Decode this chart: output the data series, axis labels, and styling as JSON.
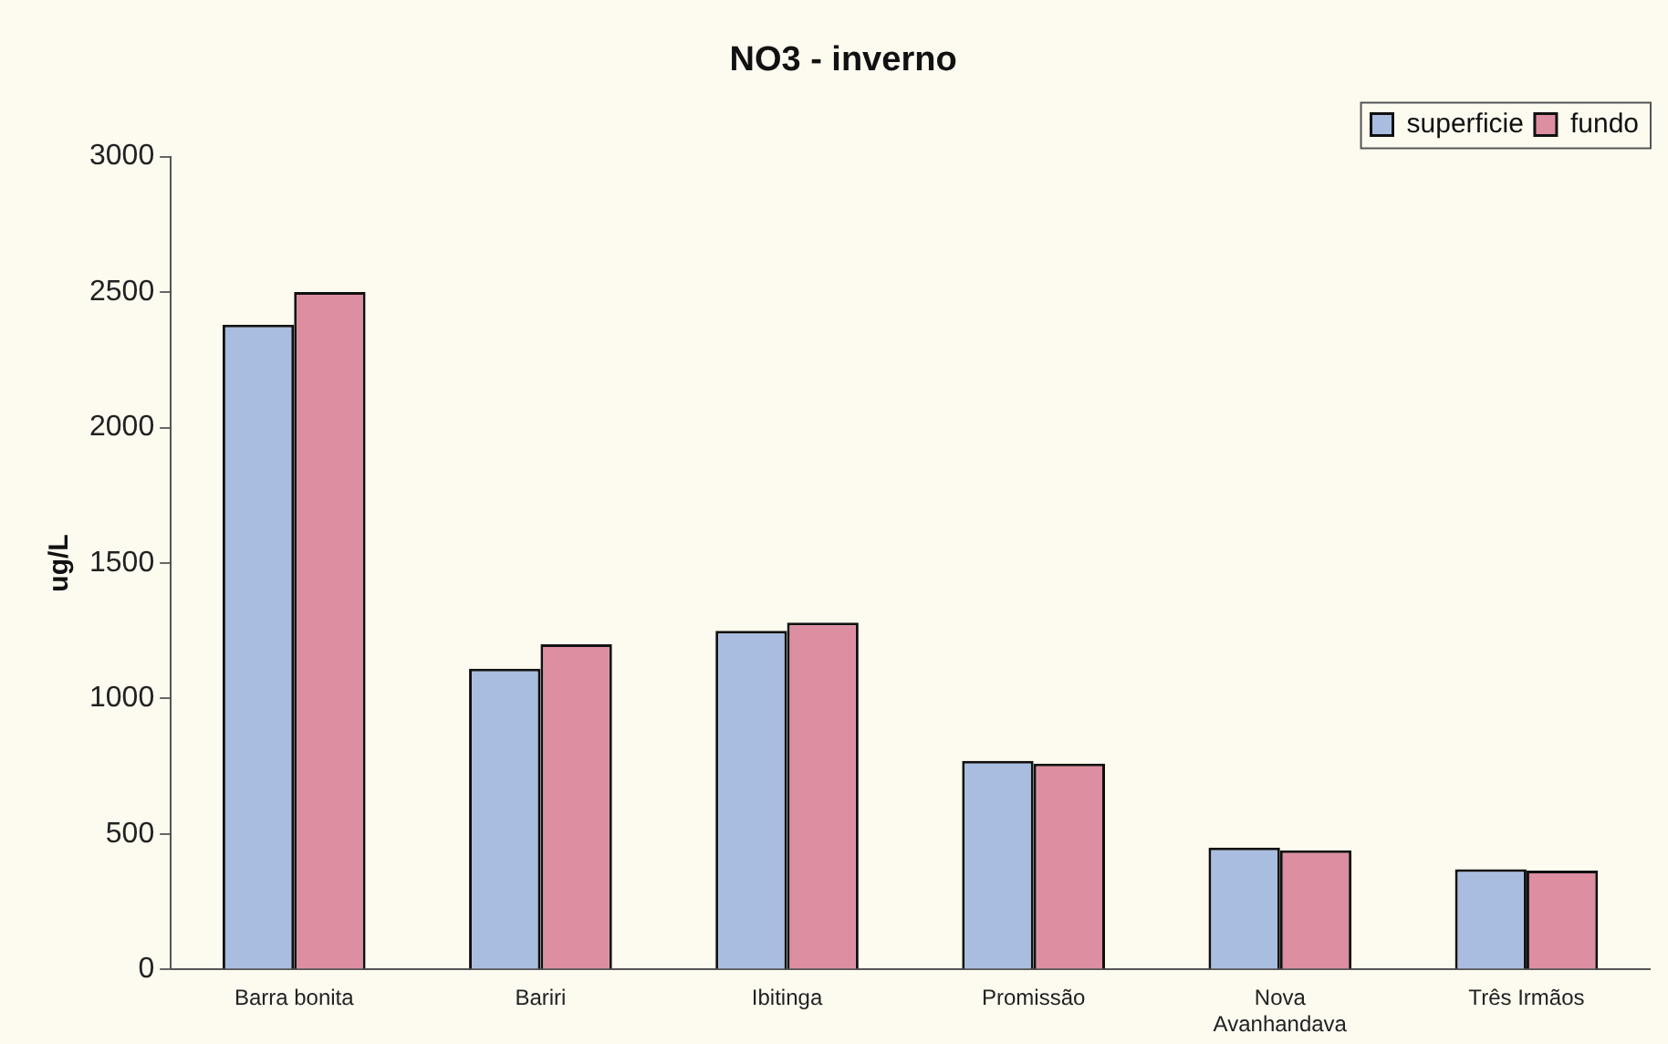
{
  "chart_data": {
    "type": "bar",
    "title": "NO3 - inverno",
    "ylabel": "ug/L",
    "categories": [
      "Barra bonita",
      "Bariri",
      "Ibitinga",
      "Promissão",
      "Nova Avanhandava",
      "Três Irmãos"
    ],
    "series": [
      {
        "name": "superficie",
        "color": "#a9bde0",
        "values": [
          2380,
          1110,
          1250,
          770,
          450,
          370
        ]
      },
      {
        "name": "fundo",
        "color": "#dd8ea0",
        "values": [
          2500,
          1200,
          1280,
          760,
          440,
          365
        ]
      }
    ],
    "ylim": [
      0,
      3000
    ],
    "yticks": [
      0,
      500,
      1000,
      1500,
      2000,
      2500,
      3000
    ],
    "grid": false,
    "legend": "top right"
  }
}
